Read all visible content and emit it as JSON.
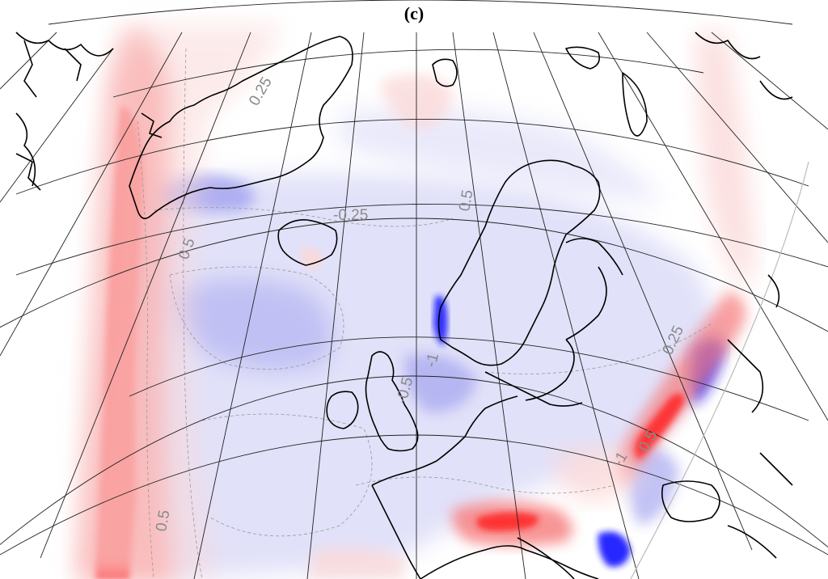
{
  "panel_label": "(c)",
  "contour_labels": [
    "0.25",
    "0.5",
    "-0.25",
    "0.5",
    "0.5",
    "-1",
    "-0.5",
    "0.25",
    "-1",
    "0.5"
  ],
  "colors": {
    "positive_strong": "#ff1a1a",
    "positive_medium": "#f77a7a",
    "positive_weak": "#fbd9d9",
    "negative_strong": "#1a1aff",
    "negative_medium": "#9a9aee",
    "negative_weak": "#dcdcf8",
    "coastline": "#000000",
    "graticule": "#222222",
    "contour_dash": "#999999"
  }
}
